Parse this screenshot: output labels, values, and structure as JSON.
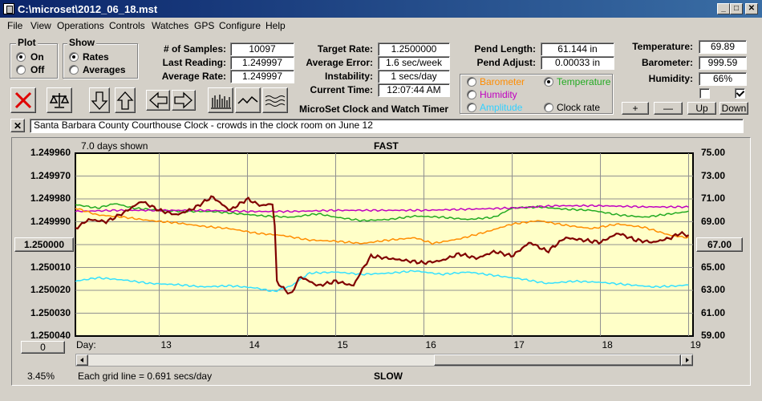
{
  "window": {
    "title": "C:\\microset\\2012_06_18.mst"
  },
  "menu": [
    "File",
    "View",
    "Operations",
    "Controls",
    "Watches",
    "GPS",
    "Configure",
    "Help"
  ],
  "plot_group": {
    "label": "Plot",
    "options": [
      "On",
      "Off"
    ],
    "selected": "On"
  },
  "show_group": {
    "label": "Show",
    "options": [
      "Rates",
      "Averages"
    ],
    "selected": "Rates"
  },
  "stats": {
    "samples_label": "# of Samples:",
    "samples": "10097",
    "last_label": "Last Reading:",
    "last": "1.249997",
    "avg_label": "Average Rate:",
    "avg": "1.249997"
  },
  "rates": {
    "target_label": "Target Rate:",
    "target": "1.2500000",
    "error_label": "Average Error:",
    "error": "1.6 sec/week",
    "instab_label": "Instability:",
    "instab": "1 secs/day",
    "time_label": "Current Time:",
    "time": "12:07:44 AM"
  },
  "pend": {
    "length_label": "Pend Length:",
    "length": "61.144 in",
    "adjust_label": "Pend Adjust:",
    "adjust": "0.00033 in"
  },
  "env": {
    "temp_label": "Temperature:",
    "temp": "69.89",
    "baro_label": "Barometer:",
    "baro": "999.59",
    "hum_label": "Humidity:",
    "hum": "66%"
  },
  "series_select": {
    "barometer": "Barometer",
    "temperature": "Temperature",
    "humidity": "Humidity",
    "amplitude": "Amplitude",
    "clock_rate": "Clock rate",
    "selected": "Temperature"
  },
  "app_caption": "MicroSet Clock and Watch Timer",
  "adjust_buttons": {
    "plus": "+",
    "minus": "—",
    "up": "Up",
    "down": "Down"
  },
  "comment": "Santa Barbara County Courthouse Clock - crowds in the clock room on June 12",
  "close_comment": "✕",
  "chart_info": {
    "days_shown": "7.0 days shown",
    "fast": "FAST",
    "slow": "SLOW",
    "grid_note": "Each grid line = 0.691 secs/day",
    "percent": "3.45%",
    "day_label": "Day:",
    "left_ref": "1.250000",
    "right_ref": "67.00",
    "bottom_left_btn": "0"
  },
  "colors": {
    "plot_bg": "#ffffc8",
    "clock_rate": "#800000",
    "barometer": "#ff8c00",
    "temperature": "#22aa22",
    "humidity": "#c000c0",
    "amplitude": "#33e0ff"
  },
  "chart_data": {
    "type": "line",
    "x_label": "Day:",
    "x_ticks": [
      "13",
      "14",
      "15",
      "16",
      "17",
      "18",
      "19"
    ],
    "xlim": [
      12.05,
      19.05
    ],
    "y_left_ticks": [
      "1.249960",
      "1.249970",
      "1.249980",
      "1.249990",
      "1.250000",
      "1.250010",
      "1.250020",
      "1.250030",
      "1.250040"
    ],
    "ylim_left": [
      1.24996,
      1.25004
    ],
    "y_right_ticks": [
      "75.00",
      "73.00",
      "71.00",
      "69.00",
      "67.00",
      "65.00",
      "63.00",
      "61.00",
      "59.00"
    ],
    "ylim_right": [
      59,
      75
    ],
    "series": [
      {
        "name": "Temperature",
        "color": "#22aa22",
        "axis": "right",
        "x": [
          12.05,
          12.3,
          12.5,
          12.7,
          13.0,
          13.3,
          13.6,
          13.9,
          14.2,
          14.5,
          14.8,
          15.0,
          15.3,
          15.6,
          15.9,
          16.2,
          16.5,
          16.8,
          17.0,
          17.3,
          17.6,
          17.9,
          18.2,
          18.5,
          18.8,
          19.0
        ],
        "y": [
          70.5,
          70.2,
          70.6,
          70.2,
          70.0,
          69.9,
          69.9,
          69.7,
          69.5,
          69.4,
          69.7,
          69.4,
          69.1,
          69.2,
          69.5,
          69.4,
          69.2,
          69.4,
          70.2,
          70.3,
          70.1,
          70.0,
          69.6,
          69.4,
          69.7,
          69.9
        ]
      },
      {
        "name": "Humidity",
        "color": "#c000c0",
        "axis": "right",
        "x": [
          12.05,
          12.5,
          13.0,
          13.5,
          14.0,
          14.5,
          15.0,
          15.5,
          16.0,
          16.5,
          17.0,
          17.5,
          18.0,
          18.5,
          19.0
        ],
        "y": [
          69.9,
          70.0,
          70.0,
          70.0,
          69.9,
          69.9,
          70.0,
          70.0,
          70.0,
          70.1,
          70.2,
          70.4,
          70.4,
          70.3,
          70.3
        ]
      },
      {
        "name": "Barometer",
        "color": "#ff8c00",
        "axis": "right",
        "x": [
          12.05,
          12.3,
          12.6,
          12.9,
          13.2,
          13.5,
          13.8,
          14.1,
          14.4,
          14.7,
          15.0,
          15.3,
          15.6,
          15.9,
          16.1,
          16.4,
          16.7,
          17.0,
          17.3,
          17.6,
          17.9,
          18.2,
          18.5,
          18.8,
          19.0
        ],
        "y": [
          70.2,
          69.6,
          69.4,
          69.1,
          68.9,
          68.6,
          68.4,
          68.0,
          67.8,
          67.4,
          67.3,
          67.1,
          67.4,
          67.6,
          67.1,
          67.5,
          68.1,
          68.8,
          69.1,
          68.7,
          68.4,
          68.8,
          68.5,
          67.8,
          67.6
        ]
      },
      {
        "name": "Amplitude",
        "color": "#33e0ff",
        "axis": "right",
        "x": [
          12.05,
          12.3,
          12.6,
          12.9,
          13.2,
          13.5,
          13.8,
          14.1,
          14.3,
          14.5,
          14.7,
          15.0,
          15.3,
          15.6,
          15.9,
          16.2,
          16.5,
          16.8,
          17.1,
          17.4,
          17.7,
          18.0,
          18.3,
          18.6,
          18.9,
          19.0
        ],
        "y": [
          63.8,
          64.1,
          63.9,
          63.6,
          63.5,
          63.3,
          63.4,
          63.2,
          62.9,
          63.4,
          64.5,
          64.6,
          64.4,
          64.5,
          64.7,
          64.4,
          64.6,
          64.3,
          64.0,
          63.6,
          63.8,
          63.7,
          63.5,
          63.3,
          63.4,
          63.5
        ]
      },
      {
        "name": "Clock rate",
        "color": "#800000",
        "axis": "left",
        "x": [
          12.05,
          12.2,
          12.4,
          12.6,
          12.8,
          13.0,
          13.2,
          13.4,
          13.6,
          13.8,
          14.0,
          14.15,
          14.3,
          14.33,
          14.4,
          14.5,
          14.55,
          14.6,
          14.8,
          15.0,
          15.2,
          15.3,
          15.4,
          15.6,
          15.8,
          16.0,
          16.2,
          16.4,
          16.6,
          16.8,
          17.0,
          17.2,
          17.4,
          17.6,
          17.8,
          18.0,
          18.2,
          18.4,
          18.6,
          18.8,
          18.9,
          19.0
        ],
        "y": [
          1.249993,
          1.249989,
          1.24999,
          1.249986,
          1.249981,
          1.249985,
          1.249987,
          1.249984,
          1.249979,
          1.249985,
          1.24998,
          1.249983,
          1.249982,
          1.250016,
          1.250019,
          1.250022,
          1.250017,
          1.250014,
          1.250018,
          1.250016,
          1.250018,
          1.250011,
          1.250005,
          1.250006,
          1.250007,
          1.250008,
          1.250007,
          1.250004,
          1.250006,
          1.250003,
          1.250005,
          1.249999,
          1.250003,
          1.249997,
          1.249998,
          1.249999,
          1.249995,
          1.249998,
          1.249999,
          1.249997,
          1.249995,
          1.249996
        ]
      }
    ]
  }
}
